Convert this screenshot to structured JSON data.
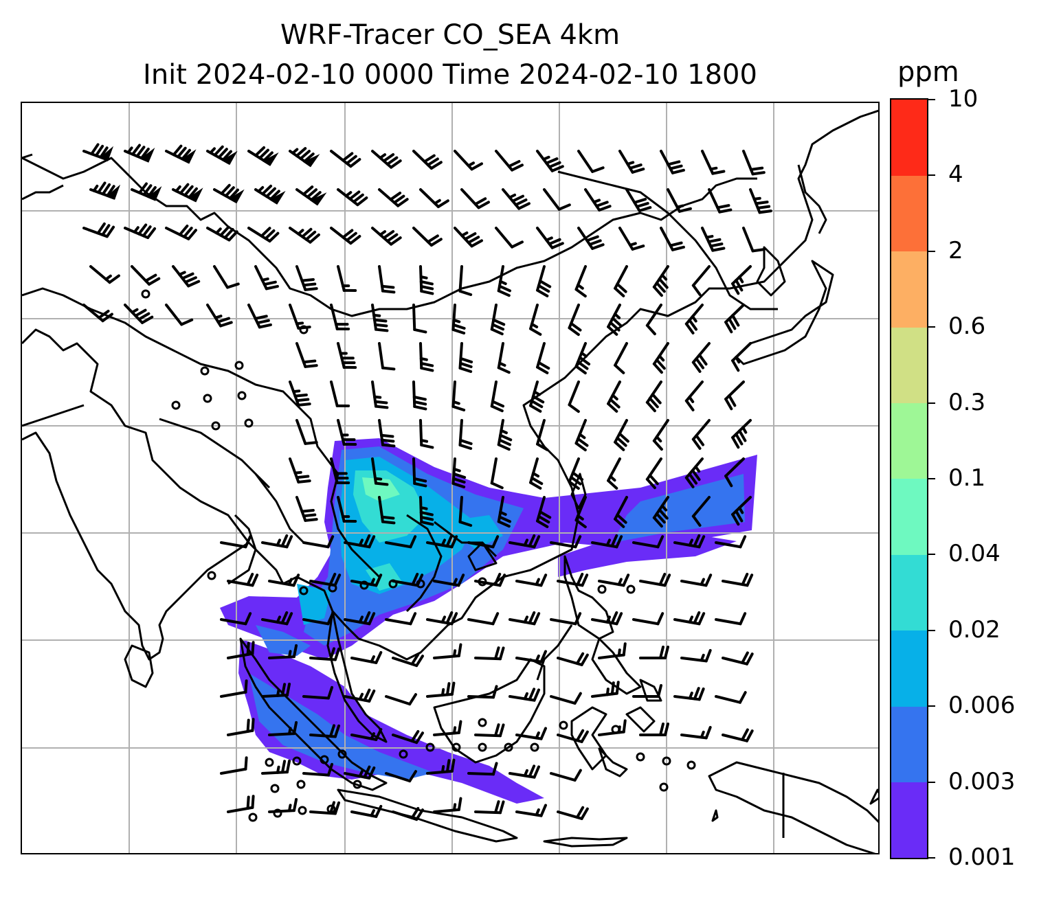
{
  "title": {
    "line1": "WRF-Tracer CO_SEA 4km",
    "line2": "Init 2024-02-10 0000 Time 2024-02-10 1800"
  },
  "colorbar": {
    "unit": "ppm",
    "levels": [
      "0.001",
      "0.003",
      "0.006",
      "0.02",
      "0.04",
      "0.1",
      "0.3",
      "0.6",
      "2",
      "4",
      "10"
    ],
    "colors": [
      "#6a2cf7",
      "#3574ef",
      "#07b0e8",
      "#33dcd4",
      "#6ef9c0",
      "#9ef796",
      "#d0e085",
      "#fdaf63",
      "#fd7038",
      "#fe2a18"
    ]
  },
  "map": {
    "features": [
      "coastlines",
      "country-borders",
      "gridlines",
      "wind-barbs",
      "co-tracer-plume"
    ],
    "plume_colors_used": [
      "#6a2cf7",
      "#3574ef",
      "#07b0e8",
      "#33dcd4",
      "#6ef9c0"
    ],
    "gridline_color": "#b0b0b0"
  }
}
